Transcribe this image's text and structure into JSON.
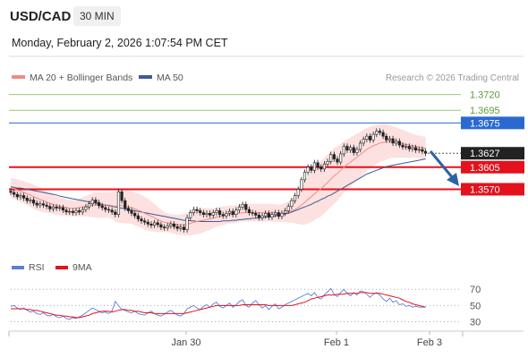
{
  "header": {
    "symbol": "USD/CAD",
    "timeframe": "30 MIN",
    "datetime": "Monday, February 2, 2026 1:07:54 PM CET"
  },
  "legend": {
    "ma20_label": "MA 20 + Bollinger Bands",
    "ma50_label": "MA 50",
    "copyright": "Research © 2026 Trading Central",
    "rsi_label": "RSI",
    "ma9_label": "9MA"
  },
  "colors": {
    "ma20": "#f28a86",
    "bollinger_fill": "#fbd7d5",
    "ma50": "#3d5a96",
    "support": "#e3121c",
    "resistance_green": "#9acb7b",
    "resistance_blue": "#2a6ad0",
    "current": "#222222",
    "candle": "#222222",
    "arrow": "#2d62a6",
    "rsi": "#5b7fd6",
    "rsi_ma": "#e3121c"
  },
  "chart_data": [
    {
      "type": "candlestick",
      "x_labels": [
        "Jan 30",
        "Feb 1",
        "Feb 3"
      ],
      "ylim": [
        1.348,
        1.3735
      ],
      "levels": [
        {
          "value": 1.372,
          "label": "1.3720",
          "kind": "resistance",
          "color": "#9acb7b"
        },
        {
          "value": 1.3695,
          "label": "1.3695",
          "kind": "resistance",
          "color": "#9acb7b"
        },
        {
          "value": 1.3675,
          "label": "1.3675",
          "kind": "resistance",
          "color": "#2a6ad0"
        },
        {
          "value": 1.3627,
          "label": "1.3627",
          "kind": "current",
          "color": "#222222"
        },
        {
          "value": 1.3605,
          "label": "1.3605",
          "kind": "support",
          "color": "#e3121c"
        },
        {
          "value": 1.357,
          "label": "1.3570",
          "kind": "support",
          "color": "#e3121c"
        }
      ],
      "close": [
        1.3565,
        1.3562,
        1.3558,
        1.356,
        1.3556,
        1.3552,
        1.3553,
        1.3548,
        1.3545,
        1.3547,
        1.3545,
        1.3543,
        1.3539,
        1.3542,
        1.354,
        1.3541,
        1.3537,
        1.3534,
        1.3535,
        1.3533,
        1.3536,
        1.3534,
        1.3538,
        1.3542,
        1.3547,
        1.3553,
        1.3549,
        1.3544,
        1.3541,
        1.3538,
        1.3537,
        1.3534,
        1.353,
        1.3566,
        1.3552,
        1.354,
        1.3536,
        1.3532,
        1.3528,
        1.3523,
        1.352,
        1.3518,
        1.3515,
        1.3513,
        1.3517,
        1.3514,
        1.351,
        1.3509,
        1.3512,
        1.3515,
        1.3511,
        1.3508,
        1.351,
        1.3506,
        1.3525,
        1.3533,
        1.3538,
        1.3536,
        1.3533,
        1.353,
        1.3532,
        1.3529,
        1.3533,
        1.3536,
        1.353,
        1.3528,
        1.3532,
        1.3535,
        1.353,
        1.3537,
        1.3542,
        1.3546,
        1.3538,
        1.3533,
        1.3532,
        1.3529,
        1.3525,
        1.3528,
        1.3532,
        1.3526,
        1.353,
        1.3533,
        1.3527,
        1.3532,
        1.3536,
        1.3543,
        1.3552,
        1.356,
        1.357,
        1.3585,
        1.3597,
        1.3605,
        1.36,
        1.3612,
        1.3605,
        1.3602,
        1.361,
        1.3614,
        1.3625,
        1.3618,
        1.3613,
        1.3626,
        1.3638,
        1.3632,
        1.3636,
        1.3628,
        1.3633,
        1.3643,
        1.3649,
        1.3654,
        1.3648,
        1.3657,
        1.3662,
        1.366,
        1.3654,
        1.3648,
        1.365,
        1.3643,
        1.3646,
        1.364,
        1.3637,
        1.3638,
        1.3634,
        1.3636,
        1.3632,
        1.3633,
        1.363,
        1.3627
      ],
      "ma20": [
        1.3572,
        1.3571,
        1.3569,
        1.3567,
        1.3565,
        1.3563,
        1.3561,
        1.3558,
        1.3556,
        1.3554,
        1.3552,
        1.355,
        1.3548,
        1.3546,
        1.3544,
        1.3543,
        1.3542,
        1.3541,
        1.354,
        1.354,
        1.354,
        1.3541,
        1.3542,
        1.3543,
        1.3544,
        1.3545,
        1.3545,
        1.3545,
        1.3545,
        1.3545,
        1.3545,
        1.3544,
        1.3543,
        1.3544,
        1.3544,
        1.3543,
        1.3542,
        1.3541,
        1.3539,
        1.3537,
        1.3535,
        1.3532,
        1.353,
        1.3527,
        1.3525,
        1.3522,
        1.352,
        1.3518,
        1.3517,
        1.3516,
        1.3515,
        1.3514,
        1.3514,
        1.3514,
        1.3515,
        1.3516,
        1.3518,
        1.3519,
        1.352,
        1.3521,
        1.3522,
        1.3523,
        1.3524,
        1.3526,
        1.3527,
        1.3528,
        1.3529,
        1.353,
        1.353,
        1.3531,
        1.3532,
        1.3533,
        1.3533,
        1.3533,
        1.3533,
        1.3533,
        1.3533,
        1.3533,
        1.3533,
        1.3533,
        1.3533,
        1.3532,
        1.3532,
        1.3532,
        1.3533,
        1.3534,
        1.3536,
        1.3538,
        1.3541,
        1.3545,
        1.3549,
        1.3554,
        1.3558,
        1.3563,
        1.3567,
        1.3571,
        1.3576,
        1.3581,
        1.3586,
        1.3591,
        1.3595,
        1.36,
        1.3605,
        1.3609,
        1.3613,
        1.3617,
        1.3621,
        1.3625,
        1.3629,
        1.3633,
        1.3636,
        1.3639,
        1.3641,
        1.3643,
        1.3644,
        1.3645,
        1.3645,
        1.3645,
        1.3644,
        1.3643,
        1.3642,
        1.3641,
        1.364,
        1.3639,
        1.3638,
        1.3637,
        1.3636,
        1.3635
      ],
      "bb_width": [
        0.0016,
        0.0016,
        0.0017,
        0.0017,
        0.0018,
        0.0018,
        0.0019,
        0.0019,
        0.0019,
        0.0019,
        0.0018,
        0.0017,
        0.0016,
        0.0015,
        0.0015,
        0.0014,
        0.0014,
        0.0013,
        0.0013,
        0.0013,
        0.0013,
        0.0014,
        0.0015,
        0.0016,
        0.0018,
        0.0019,
        0.002,
        0.002,
        0.002,
        0.002,
        0.002,
        0.0021,
        0.0024,
        0.0027,
        0.0027,
        0.0027,
        0.0026,
        0.0026,
        0.0026,
        0.0026,
        0.0026,
        0.0026,
        0.0025,
        0.0024,
        0.0022,
        0.002,
        0.0018,
        0.0016,
        0.0015,
        0.0015,
        0.0015,
        0.0016,
        0.0016,
        0.0017,
        0.0018,
        0.0019,
        0.002,
        0.002,
        0.002,
        0.0019,
        0.0018,
        0.0017,
        0.0016,
        0.0015,
        0.0015,
        0.0015,
        0.0014,
        0.0014,
        0.0014,
        0.0014,
        0.0014,
        0.0014,
        0.0014,
        0.0014,
        0.0014,
        0.0014,
        0.0014,
        0.0014,
        0.0014,
        0.0014,
        0.0014,
        0.0014,
        0.0014,
        0.0014,
        0.0015,
        0.0017,
        0.0019,
        0.0022,
        0.0026,
        0.0031,
        0.0035,
        0.0038,
        0.004,
        0.0042,
        0.0043,
        0.0044,
        0.0044,
        0.0044,
        0.0044,
        0.0044,
        0.0043,
        0.0042,
        0.0041,
        0.004,
        0.0039,
        0.0038,
        0.0037,
        0.0036,
        0.0035,
        0.0034,
        0.0033,
        0.0032,
        0.0031,
        0.003,
        0.0029,
        0.0028,
        0.0026,
        0.0025,
        0.0024,
        0.0023,
        0.0022,
        0.0021,
        0.002,
        0.0019,
        0.0018,
        0.0018,
        0.0018,
        0.0018
      ],
      "ma50": [
        1.3574,
        1.3573,
        1.3572,
        1.3572,
        1.3571,
        1.357,
        1.3569,
        1.3568,
        1.3567,
        1.3566,
        1.3565,
        1.3564,
        1.3563,
        1.3562,
        1.3561,
        1.3559,
        1.3558,
        1.3557,
        1.3556,
        1.3555,
        1.3554,
        1.3553,
        1.3552,
        1.3551,
        1.355,
        1.3549,
        1.3548,
        1.3547,
        1.3546,
        1.3545,
        1.3544,
        1.3543,
        1.3542,
        1.3541,
        1.354,
        1.3539,
        1.3538,
        1.3537,
        1.3536,
        1.3535,
        1.3534,
        1.3533,
        1.3532,
        1.3531,
        1.353,
        1.3529,
        1.3528,
        1.3527,
        1.3526,
        1.3525,
        1.3524,
        1.3523,
        1.3522,
        1.3521,
        1.3521,
        1.352,
        1.352,
        1.3519,
        1.3519,
        1.3519,
        1.3519,
        1.3519,
        1.3519,
        1.3519,
        1.3519,
        1.352,
        1.352,
        1.352,
        1.3521,
        1.3521,
        1.3522,
        1.3522,
        1.3523,
        1.3523,
        1.3524,
        1.3524,
        1.3525,
        1.3525,
        1.3526,
        1.3526,
        1.3527,
        1.3528,
        1.3529,
        1.353,
        1.3531,
        1.3532,
        1.3534,
        1.3536,
        1.3538,
        1.354,
        1.3542,
        1.3544,
        1.3546,
        1.3549,
        1.3551,
        1.3554,
        1.3556,
        1.3559,
        1.3561,
        1.3564,
        1.3567,
        1.357,
        1.3573,
        1.3576,
        1.3579,
        1.3582,
        1.3585,
        1.3588,
        1.3591,
        1.3594,
        1.3596,
        1.3598,
        1.36,
        1.3602,
        1.3604,
        1.3606,
        1.3607,
        1.3608,
        1.3609,
        1.361,
        1.3611,
        1.3612,
        1.3613,
        1.3614,
        1.3615,
        1.3616,
        1.3617,
        1.3618
      ]
    },
    {
      "type": "line",
      "title": "RSI",
      "y_ticks": [
        70,
        50,
        30
      ],
      "ylim": [
        25,
        78
      ],
      "rsi": [
        49,
        50,
        47,
        45,
        47,
        44,
        42,
        43,
        40,
        39,
        41,
        38,
        37,
        39,
        36,
        35,
        37,
        34,
        33,
        35,
        34,
        36,
        38,
        41,
        44,
        47,
        45,
        43,
        41,
        42,
        40,
        43,
        55,
        50,
        45,
        44,
        42,
        41,
        43,
        40,
        39,
        38,
        41,
        43,
        40,
        38,
        37,
        39,
        42,
        44,
        41,
        38,
        37,
        40,
        46,
        48,
        50,
        47,
        45,
        49,
        51,
        48,
        52,
        54,
        49,
        47,
        50,
        53,
        48,
        51,
        55,
        57,
        50,
        48,
        53,
        56,
        51,
        47,
        50,
        45,
        49,
        52,
        46,
        48,
        51,
        53,
        55,
        57,
        59,
        61,
        63,
        65,
        62,
        66,
        60,
        58,
        63,
        67,
        71,
        64,
        61,
        66,
        70,
        65,
        62,
        66,
        63,
        68,
        67,
        64,
        60,
        64,
        66,
        63,
        58,
        55,
        59,
        54,
        56,
        51,
        52,
        49,
        50,
        48,
        49,
        48,
        48,
        48
      ],
      "ma9": [
        46,
        46,
        46,
        46,
        46,
        45,
        45,
        44,
        44,
        43,
        42,
        41,
        40,
        39,
        38,
        38,
        37,
        37,
        36,
        36,
        35,
        35,
        36,
        37,
        38,
        40,
        41,
        42,
        43,
        43,
        43,
        42,
        43,
        44,
        45,
        45,
        44,
        44,
        43,
        43,
        42,
        41,
        41,
        41,
        40,
        40,
        40,
        40,
        40,
        40,
        40,
        40,
        40,
        40,
        41,
        42,
        43,
        44,
        45,
        46,
        47,
        48,
        49,
        50,
        50,
        50,
        50,
        50,
        50,
        50,
        50,
        51,
        51,
        51,
        51,
        51,
        51,
        51,
        51,
        50,
        50,
        50,
        50,
        50,
        50,
        50,
        50,
        51,
        52,
        53,
        54,
        56,
        58,
        59,
        60,
        61,
        62,
        63,
        63,
        63,
        64,
        64,
        64,
        65,
        65,
        65,
        65,
        66,
        66,
        66,
        65,
        65,
        65,
        65,
        64,
        63,
        62,
        61,
        60,
        59,
        57,
        55,
        54,
        52,
        51,
        50,
        49,
        48
      ]
    }
  ]
}
